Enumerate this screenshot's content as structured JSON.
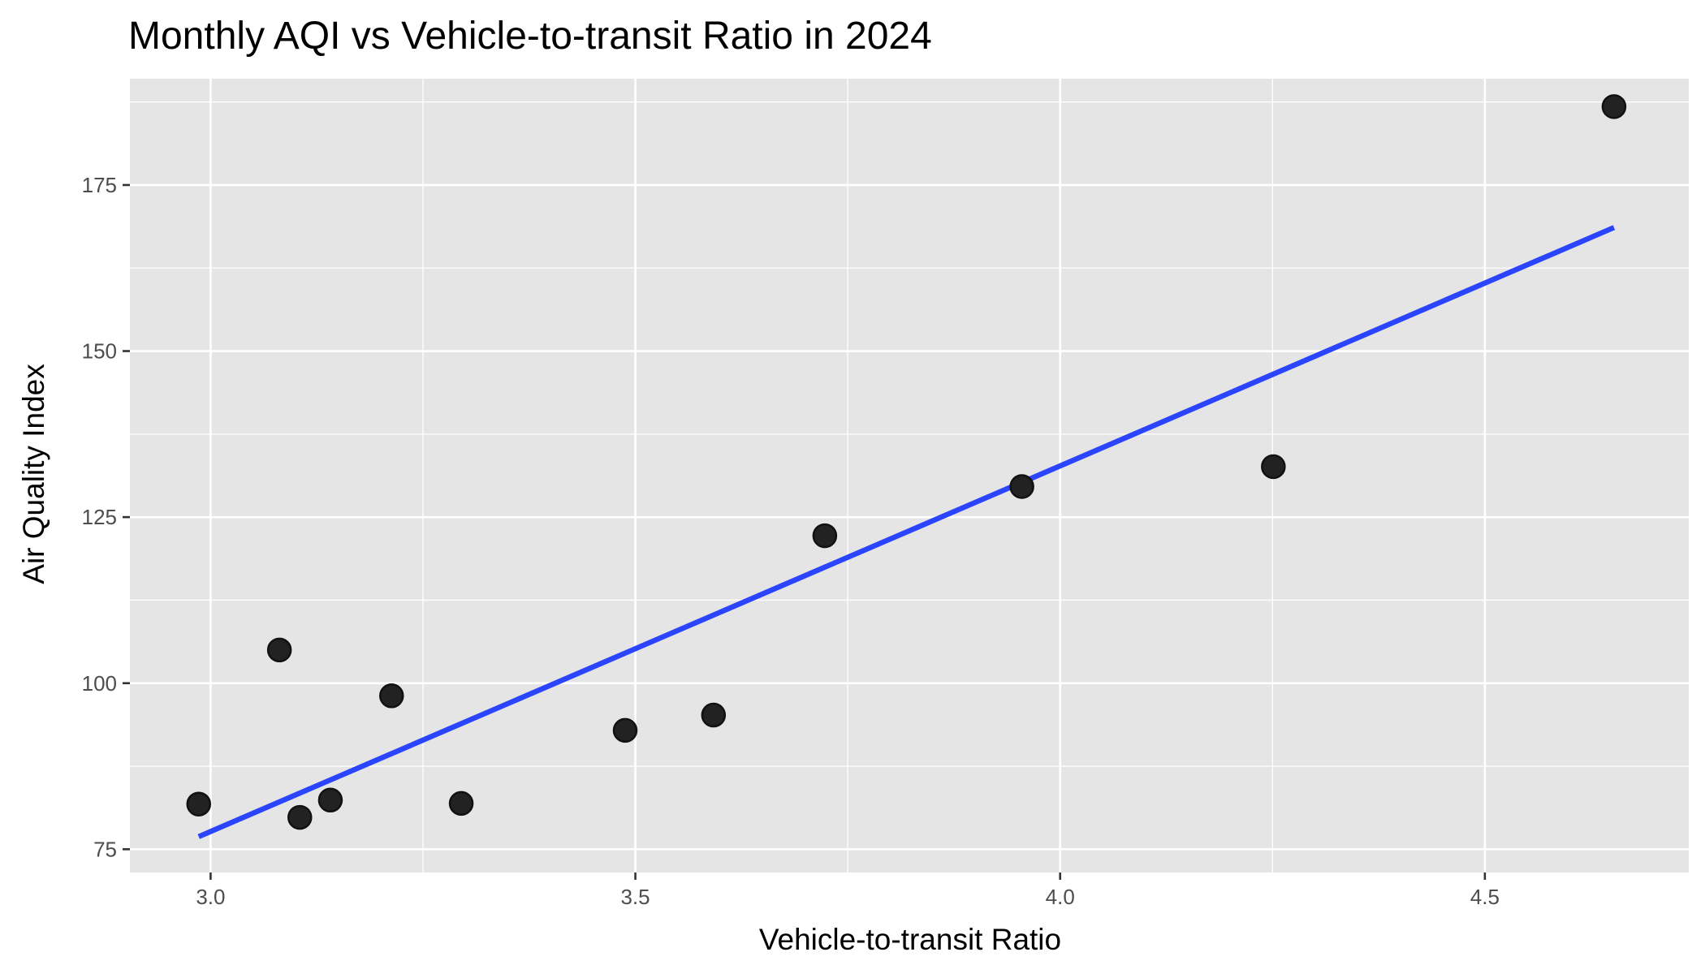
{
  "chart_data": {
    "type": "scatter",
    "title": "Monthly AQI vs Vehicle-to-transit Ratio in 2024",
    "xlabel": "Vehicle-to-transit Ratio",
    "ylabel": "Air Quality Index",
    "xlim": [
      2.905,
      4.74
    ],
    "ylim": [
      71.5,
      191
    ],
    "x_ticks": [
      3.0,
      3.5,
      4.0,
      4.5
    ],
    "x_tick_labels": [
      "3.0",
      "3.5",
      "4.0",
      "4.5"
    ],
    "x_minor_ticks": [
      3.25,
      3.75,
      4.25
    ],
    "y_ticks": [
      75,
      100,
      125,
      150,
      175
    ],
    "y_tick_labels": [
      "75",
      "100",
      "125",
      "150",
      "175"
    ],
    "y_minor_ticks": [
      87.5,
      112.5,
      137.5,
      162.5,
      187.5
    ],
    "grid": true,
    "legend": "none",
    "colors": {
      "panel": "#e5e5e5",
      "grid": "#ffffff",
      "point_fill": "#222222",
      "point_stroke": "#111111",
      "trend_line": "#2b45ff",
      "tick_mark": "#333333"
    },
    "points": [
      {
        "x": 2.986,
        "y": 81.8
      },
      {
        "x": 3.081,
        "y": 105.0
      },
      {
        "x": 3.105,
        "y": 79.8
      },
      {
        "x": 3.141,
        "y": 82.4
      },
      {
        "x": 3.213,
        "y": 98.1
      },
      {
        "x": 3.295,
        "y": 81.9
      },
      {
        "x": 3.488,
        "y": 92.9
      },
      {
        "x": 3.592,
        "y": 95.2
      },
      {
        "x": 3.723,
        "y": 122.2
      },
      {
        "x": 3.955,
        "y": 129.6
      },
      {
        "x": 4.251,
        "y": 132.6
      },
      {
        "x": 4.652,
        "y": 186.8
      }
    ],
    "trend_line": {
      "type": "linear",
      "x": [
        2.986,
        4.652
      ],
      "y": [
        76.9,
        168.6
      ]
    }
  }
}
